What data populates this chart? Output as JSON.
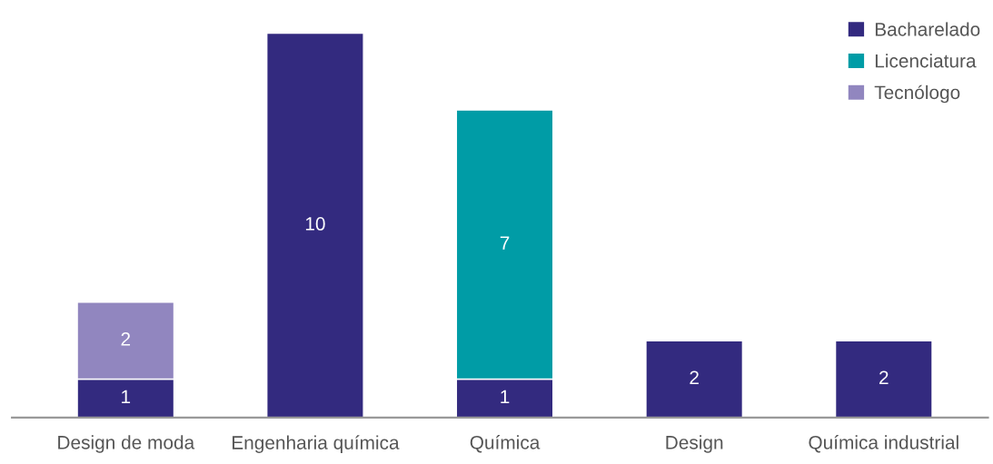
{
  "chart_data": {
    "type": "bar",
    "stacked": true,
    "data_labels": true,
    "legend": "top right",
    "grid": false,
    "categories": [
      "Design de moda",
      "Engenharia química",
      "Química",
      "Design",
      "Química industrial"
    ],
    "series": [
      {
        "name": "Bacharelado",
        "color": "#332a7f",
        "values": [
          1,
          10,
          1,
          2,
          2
        ]
      },
      {
        "name": "Licenciatura",
        "color": "#009ca6",
        "values": [
          null,
          null,
          7,
          null,
          null
        ]
      },
      {
        "name": "Tecnólogo",
        "color": "#9186bf",
        "values": [
          2,
          null,
          null,
          null,
          null
        ]
      }
    ]
  }
}
